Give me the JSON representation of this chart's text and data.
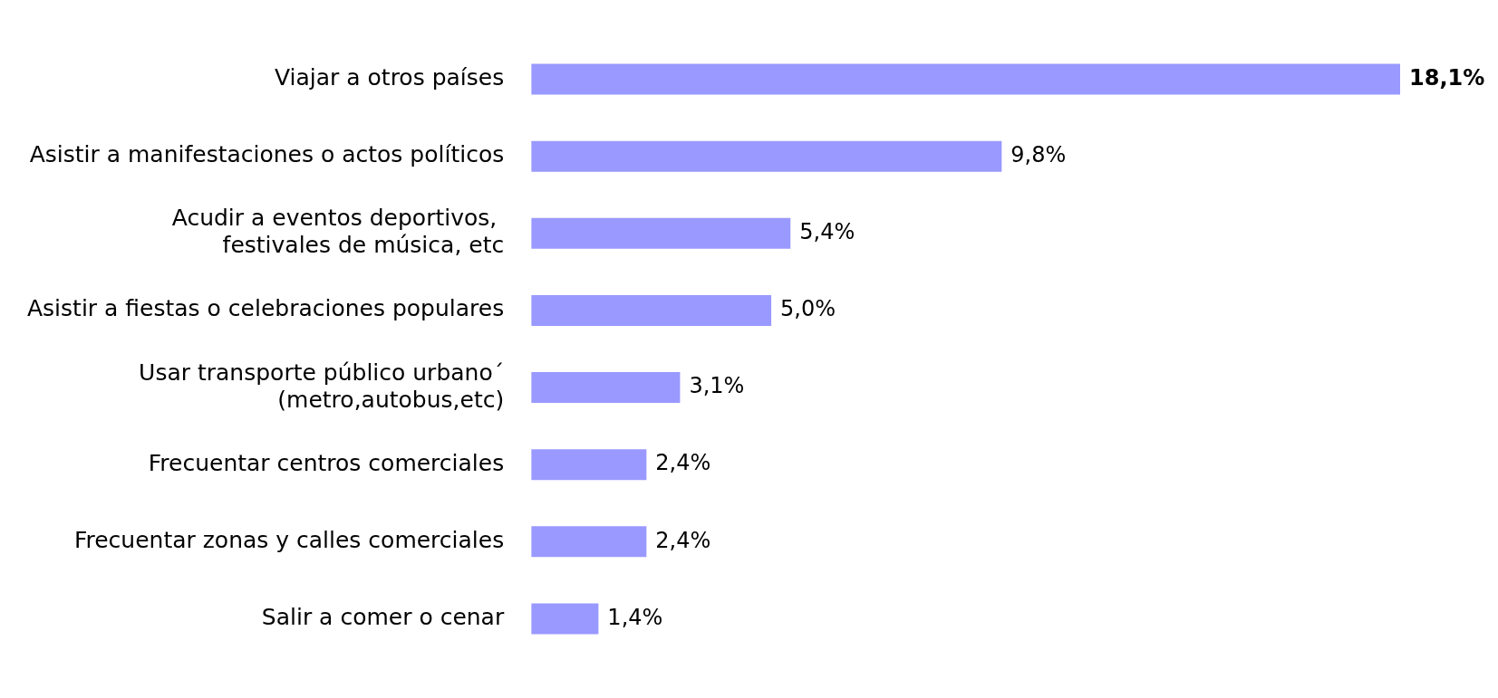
{
  "chart_data": {
    "type": "bar",
    "orientation": "horizontal",
    "categories": [
      "Viajar a otros países",
      "Asistir a manifestaciones o actos políticos",
      "Acudir a eventos deportivos, \nfestivales de música, etc",
      "Asistir a fiestas o celebraciones populares",
      "Usar transporte público urbano´\n(metro,autobus,etc)",
      "Frecuentar centros comerciales",
      "Frecuentar zonas y calles comerciales",
      "Salir a comer o cenar"
    ],
    "values": [
      18.1,
      9.8,
      5.4,
      5.0,
      3.1,
      2.4,
      2.4,
      1.4
    ],
    "value_labels": [
      "18,1%",
      "9,8%",
      "5,4%",
      "5,0%",
      "3,1%",
      "2,4%",
      "2,4%",
      "1,4%"
    ],
    "color": "#9999ff",
    "legend": false
  }
}
